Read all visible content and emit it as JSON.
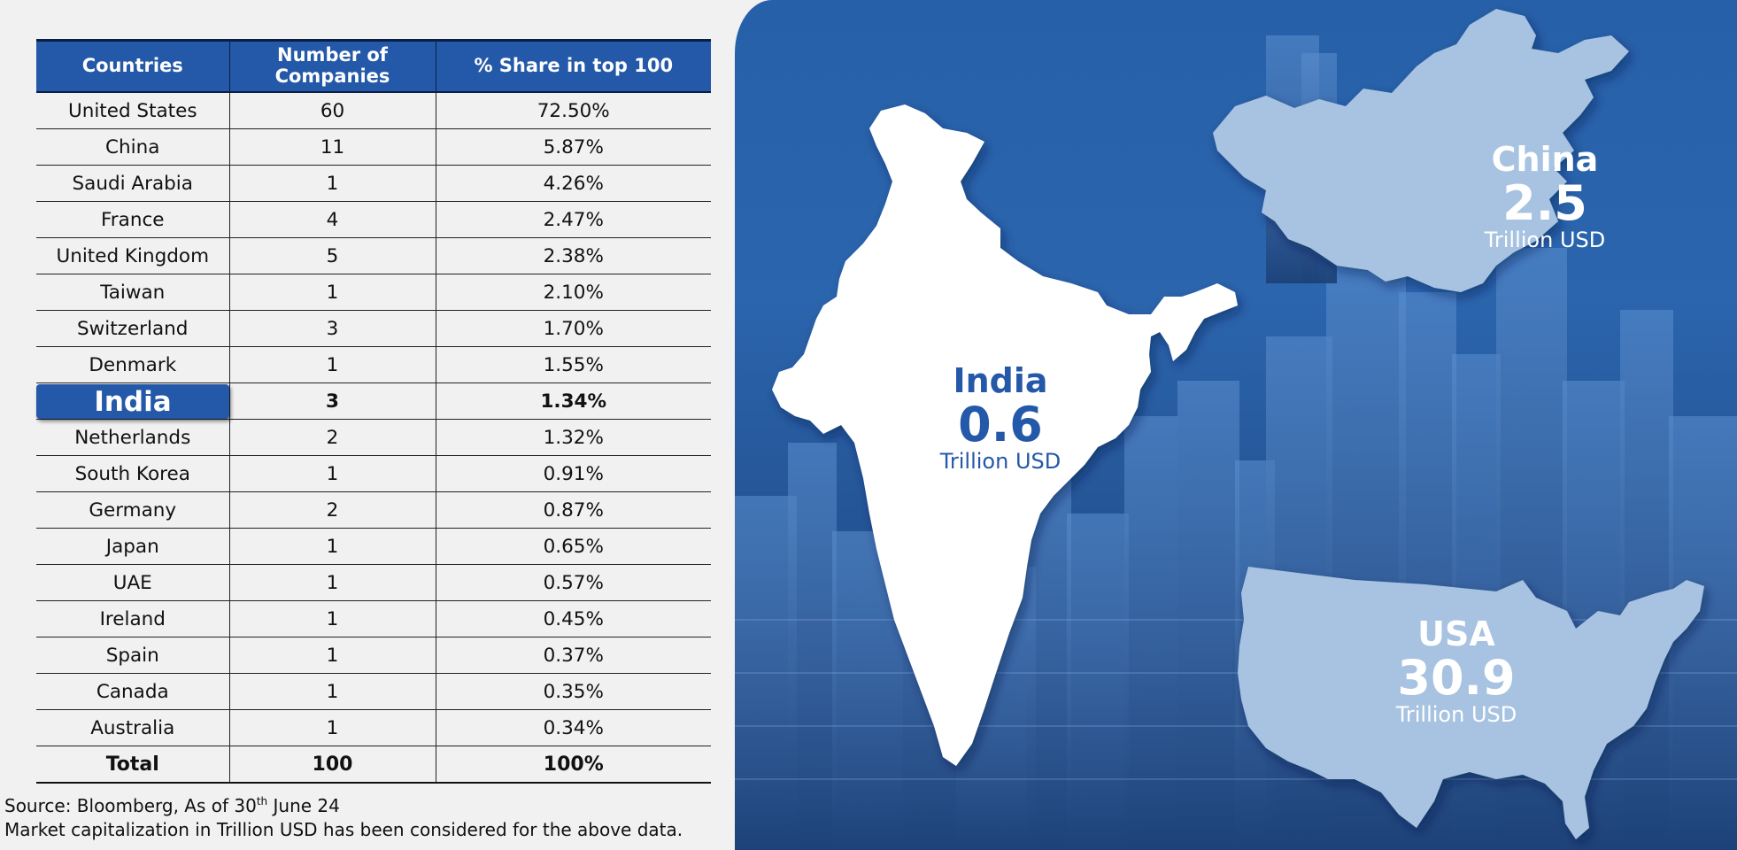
{
  "table": {
    "headers": [
      "Countries",
      "Number of Companies",
      "% Share in top 100"
    ],
    "rows": [
      {
        "country": "United States",
        "companies": "60",
        "share": "72.50%"
      },
      {
        "country": "China",
        "companies": "11",
        "share": "5.87%"
      },
      {
        "country": "Saudi Arabia",
        "companies": "1",
        "share": "4.26%"
      },
      {
        "country": "France",
        "companies": "4",
        "share": "2.47%"
      },
      {
        "country": "United Kingdom",
        "companies": "5",
        "share": "2.38%"
      },
      {
        "country": "Taiwan",
        "companies": "1",
        "share": "2.10%"
      },
      {
        "country": "Switzerland",
        "companies": "3",
        "share": "1.70%"
      },
      {
        "country": "Denmark",
        "companies": "1",
        "share": "1.55%"
      },
      {
        "country": "India",
        "companies": "3",
        "share": "1.34%",
        "highlight": true
      },
      {
        "country": "Netherlands",
        "companies": "2",
        "share": "1.32%"
      },
      {
        "country": "South Korea",
        "companies": "1",
        "share": "0.91%"
      },
      {
        "country": "Germany",
        "companies": "2",
        "share": "0.87%"
      },
      {
        "country": "Japan",
        "companies": "1",
        "share": "0.65%"
      },
      {
        "country": "UAE",
        "companies": "1",
        "share": "0.57%"
      },
      {
        "country": "Ireland",
        "companies": "1",
        "share": "0.45%"
      },
      {
        "country": "Spain",
        "companies": "1",
        "share": "0.37%"
      },
      {
        "country": "Canada",
        "companies": "1",
        "share": "0.35%"
      },
      {
        "country": "Australia",
        "companies": "1",
        "share": "0.34%"
      }
    ],
    "total": {
      "country": "Total",
      "companies": "100",
      "share": "100%"
    }
  },
  "footnotes": {
    "source_prefix": "Source: Bloomberg, As of 30",
    "source_sup": "th",
    "source_suffix": " June 24",
    "method": "Market capitalization in Trillion USD has been considered for the above data."
  },
  "map": {
    "india": {
      "name": "India",
      "value": "0.6",
      "unit": "Trillion USD"
    },
    "china": {
      "name": "China",
      "value": "2.5",
      "unit": "Trillion USD"
    },
    "usa": {
      "name": "USA",
      "value": "30.9",
      "unit": "Trillion USD"
    }
  },
  "colors": {
    "header_blue": "#2458a8",
    "panel_blue": "#2660a8",
    "map_light": "#a7c3e1",
    "india_fill": "#ffffff"
  },
  "icons": [
    "india-map-icon",
    "china-map-icon",
    "usa-map-icon",
    "city-skyline-image"
  ]
}
